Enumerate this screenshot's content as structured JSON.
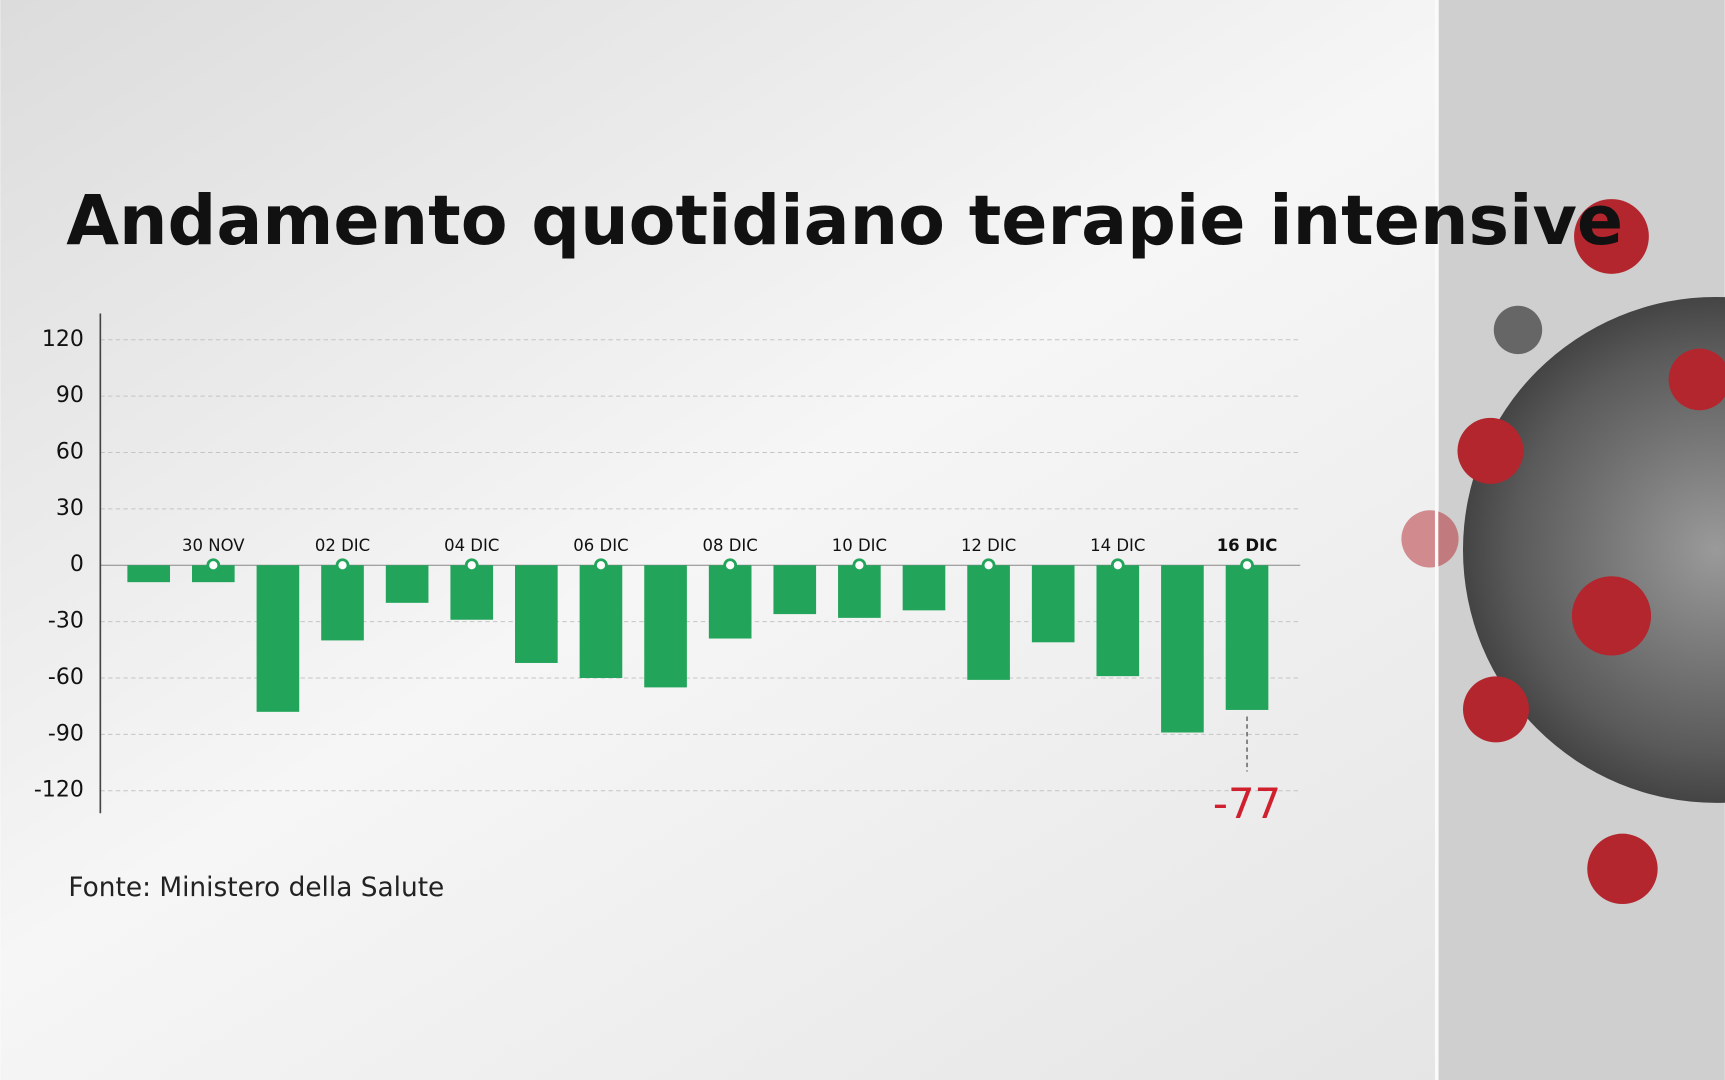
{
  "chart_data": {
    "type": "bar",
    "title": "Andamento quotidiano terapie intensive",
    "source": "Fonte: Ministero della Salute",
    "categories": [
      null,
      "30 NOV",
      null,
      "02 DIC",
      null,
      "04 DIC",
      null,
      "06 DIC",
      null,
      "08 DIC",
      null,
      "10 DIC",
      null,
      "12 DIC",
      null,
      "14 DIC",
      null,
      "16 DIC"
    ],
    "values": [
      -9,
      -9,
      -78,
      -40,
      -20,
      -29,
      -52,
      -60,
      -65,
      -39,
      -26,
      -28,
      -24,
      -61,
      -41,
      -59,
      -89,
      -77
    ],
    "color": "#22a55a",
    "highlight_color": "#d0202e",
    "ylim": [
      -132,
      134
    ],
    "yticks": [
      -120,
      -90,
      -60,
      -30,
      0,
      30,
      60,
      90,
      120
    ],
    "grid": true
  }
}
